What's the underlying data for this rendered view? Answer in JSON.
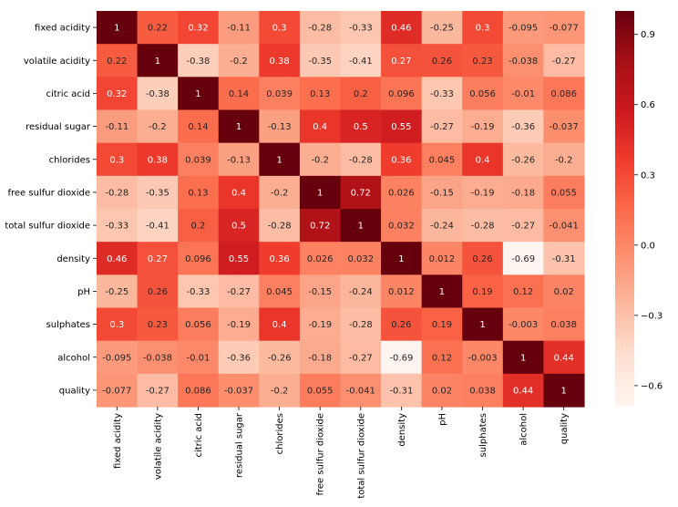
{
  "chart_data": {
    "type": "heatmap",
    "title": "",
    "xlabel": "",
    "ylabel": "",
    "colormap": "Reds",
    "value_range": [
      -0.69,
      1.0
    ],
    "row_labels": [
      "fixed acidity",
      "volatile acidity",
      "citric acid",
      "residual sugar",
      "chlorides",
      "free sulfur dioxide",
      "total sulfur dioxide",
      "density",
      "pH",
      "sulphates",
      "alcohol",
      "quality"
    ],
    "col_labels": [
      "fixed acidity",
      "volatile acidity",
      "citric acid",
      "residual sugar",
      "chlorides",
      "free sulfur dioxide",
      "total sulfur dioxide",
      "density",
      "pH",
      "sulphates",
      "alcohol",
      "quality"
    ],
    "values": [
      [
        1,
        0.22,
        0.32,
        -0.11,
        0.3,
        -0.28,
        -0.33,
        0.46,
        -0.25,
        0.3,
        -0.095,
        -0.077
      ],
      [
        0.22,
        1,
        -0.38,
        -0.2,
        0.38,
        -0.35,
        -0.41,
        0.27,
        0.26,
        0.23,
        -0.038,
        -0.27
      ],
      [
        0.32,
        -0.38,
        1,
        0.14,
        0.039,
        0.13,
        0.2,
        0.096,
        -0.33,
        0.056,
        -0.01,
        0.086
      ],
      [
        -0.11,
        -0.2,
        0.14,
        1,
        -0.13,
        0.4,
        0.5,
        0.55,
        -0.27,
        -0.19,
        -0.36,
        -0.037
      ],
      [
        0.3,
        0.38,
        0.039,
        -0.13,
        1,
        -0.2,
        -0.28,
        0.36,
        0.045,
        0.4,
        -0.26,
        -0.2
      ],
      [
        -0.28,
        -0.35,
        0.13,
        0.4,
        -0.2,
        1,
        0.72,
        0.026,
        -0.15,
        -0.19,
        -0.18,
        0.055
      ],
      [
        -0.33,
        -0.41,
        0.2,
        0.5,
        -0.28,
        0.72,
        1,
        0.032,
        -0.24,
        -0.28,
        -0.27,
        -0.041
      ],
      [
        0.46,
        0.27,
        0.096,
        0.55,
        0.36,
        0.026,
        0.032,
        1,
        0.012,
        0.26,
        -0.69,
        -0.31
      ],
      [
        -0.25,
        0.26,
        -0.33,
        -0.27,
        0.045,
        -0.15,
        -0.24,
        0.012,
        1,
        0.19,
        0.12,
        0.02
      ],
      [
        0.3,
        0.23,
        0.056,
        -0.19,
        0.4,
        -0.19,
        -0.28,
        0.26,
        0.19,
        1,
        -0.003,
        0.038
      ],
      [
        -0.095,
        -0.038,
        -0.01,
        -0.36,
        -0.26,
        -0.18,
        -0.27,
        -0.69,
        0.12,
        -0.003,
        1,
        0.44
      ],
      [
        -0.077,
        -0.27,
        0.086,
        -0.037,
        -0.2,
        0.055,
        -0.041,
        -0.31,
        0.02,
        0.038,
        0.44,
        1
      ]
    ],
    "colorbar": {
      "ticks": [
        0.9,
        0.6,
        0.3,
        0.0,
        -0.3,
        -0.6
      ],
      "tick_labels": [
        "0.9",
        "0.6",
        "0.3",
        "0.0",
        "−0.3",
        "−0.6"
      ]
    }
  }
}
